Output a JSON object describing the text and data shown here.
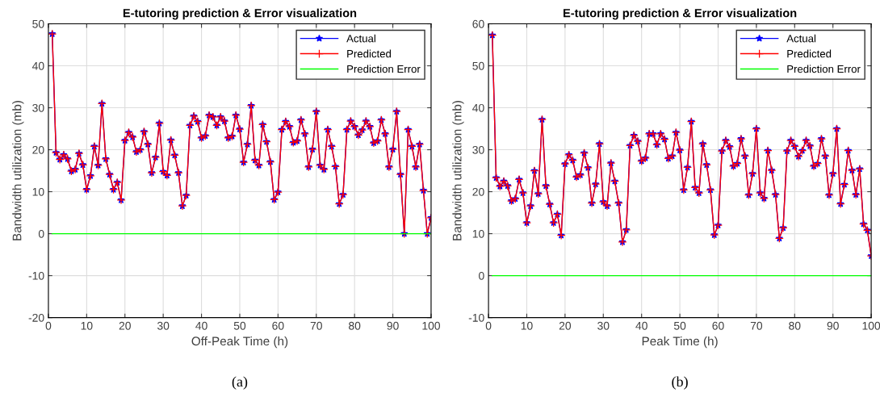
{
  "chart_data": [
    {
      "type": "line",
      "title": "E-tutoring prediction & Error visualization",
      "xlabel": "Off-Peak Time (h)",
      "ylabel": "Bandwidth utilization (mb)",
      "annotations": [
        "(a)"
      ],
      "x": [
        1,
        2,
        3,
        4,
        5,
        6,
        7,
        8,
        9,
        10,
        11,
        12,
        13,
        14,
        15,
        16,
        17,
        18,
        19,
        20,
        21,
        22,
        23,
        24,
        25,
        26,
        27,
        28,
        29,
        30,
        31,
        32,
        33,
        34,
        35,
        36,
        37,
        38,
        39,
        40,
        41,
        42,
        43,
        44,
        45,
        46,
        47,
        48,
        49,
        50,
        51,
        52,
        53,
        54,
        55,
        56,
        57,
        58,
        59,
        60,
        61,
        62,
        63,
        64,
        65,
        66,
        67,
        68,
        69,
        70,
        71,
        72,
        73,
        74,
        75,
        76,
        77,
        78,
        79,
        80,
        81,
        82,
        83,
        84,
        85,
        86,
        87,
        88,
        89,
        90,
        91,
        92,
        93,
        94,
        95,
        96,
        97,
        98,
        99,
        100
      ],
      "xlim": [
        0,
        100
      ],
      "xticks": [
        0,
        10,
        20,
        30,
        40,
        50,
        60,
        70,
        80,
        90,
        100
      ],
      "ylim": [
        -20,
        50
      ],
      "yticks": [
        -20,
        -10,
        0,
        10,
        20,
        30,
        40,
        50
      ],
      "grid": true,
      "legend": "top right",
      "series": [
        {
          "name": "Actual",
          "color": "#0000ff",
          "marker": "star",
          "values": [
            47.6,
            19.3,
            17.7,
            18.8,
            17.8,
            14.9,
            15.3,
            19.1,
            16.4,
            10.5,
            13.8,
            20.8,
            16.3,
            31,
            17.8,
            14.1,
            10.5,
            12.2,
            8,
            22.2,
            24.1,
            23,
            19.5,
            20,
            24.3,
            21.3,
            14.5,
            18.2,
            26.3,
            14.8,
            13.9,
            22.3,
            18.7,
            14.5,
            6.6,
            9.1,
            25.8,
            28,
            26.7,
            22.8,
            23.3,
            28.2,
            27.8,
            25.8,
            27.8,
            26.8,
            22.8,
            23.2,
            28.2,
            24.9,
            17,
            21.3,
            30.5,
            17.5,
            16.3,
            26,
            21.9,
            17.1,
            8.1,
            9.9,
            24.8,
            26.7,
            25.5,
            21.7,
            22.1,
            27.1,
            23.8,
            15.9,
            20.1,
            29.1,
            16.3,
            15.3,
            24.8,
            20.8,
            16,
            7.1,
            9.3,
            24.8,
            26.8,
            25.5,
            23.5,
            24.7,
            26.8,
            25.5,
            21.6,
            22.1,
            27.1,
            23.8,
            15.9,
            20.1,
            29.1,
            14.1,
            0,
            24.8,
            20.8,
            15.9,
            21.3,
            10.3,
            0,
            3.8
          ]
        },
        {
          "name": "Predicted",
          "color": "#ff0000",
          "marker": "cross",
          "values": [
            47.6,
            19.3,
            17.7,
            18.8,
            17.8,
            14.9,
            15.3,
            19.1,
            16.4,
            10.5,
            13.8,
            20.8,
            16.3,
            31,
            17.8,
            14.1,
            10.5,
            12.2,
            8,
            22.2,
            24.1,
            23,
            19.5,
            20,
            24.3,
            21.3,
            14.5,
            18.2,
            26.3,
            14.8,
            13.9,
            22.3,
            18.7,
            14.5,
            6.6,
            9.1,
            25.8,
            28,
            26.7,
            22.8,
            23.3,
            28.2,
            27.8,
            25.8,
            27.8,
            26.8,
            22.8,
            23.2,
            28.2,
            24.9,
            17,
            21.3,
            30.5,
            17.5,
            16.3,
            26,
            21.9,
            17.1,
            8.1,
            9.9,
            24.8,
            26.7,
            25.5,
            21.7,
            22.1,
            27.1,
            23.8,
            15.9,
            20.1,
            29.1,
            16.3,
            15.3,
            24.8,
            20.8,
            16,
            7.1,
            9.3,
            24.8,
            26.8,
            25.5,
            23.5,
            24.7,
            26.8,
            25.5,
            21.6,
            22.1,
            27.1,
            23.8,
            15.9,
            20.1,
            29.1,
            14.1,
            0,
            24.8,
            20.8,
            15.9,
            21.3,
            10.3,
            0,
            3.8
          ]
        },
        {
          "name": "Prediction Error",
          "color": "#00ff00",
          "marker": "none",
          "values": [
            0,
            0,
            0,
            0,
            0,
            0,
            0,
            0,
            0,
            0,
            0,
            0,
            0,
            0,
            0,
            0,
            0,
            0,
            0,
            0,
            0,
            0,
            0,
            0,
            0,
            0,
            0,
            0,
            0,
            0,
            0,
            0,
            0,
            0,
            0,
            0,
            0,
            0,
            0,
            0,
            0,
            0,
            0,
            0,
            0,
            0,
            0,
            0,
            0,
            0,
            0,
            0,
            0,
            0,
            0,
            0,
            0,
            0,
            0,
            0,
            0,
            0,
            0,
            0,
            0,
            0,
            0,
            0,
            0,
            0,
            0,
            0,
            0,
            0,
            0,
            0,
            0,
            0,
            0,
            0,
            0,
            0,
            0,
            0,
            0,
            0,
            0,
            0,
            0,
            0,
            0,
            0,
            0,
            0,
            0,
            0,
            0,
            0,
            0,
            0
          ]
        }
      ]
    },
    {
      "type": "line",
      "title": "E-tutoring prediction & Error visualization",
      "xlabel": "Peak Time (h)",
      "ylabel": "Bandwidth utilization (mb)",
      "annotations": [
        "(b)"
      ],
      "x": [
        1,
        2,
        3,
        4,
        5,
        6,
        7,
        8,
        9,
        10,
        11,
        12,
        13,
        14,
        15,
        16,
        17,
        18,
        19,
        20,
        21,
        22,
        23,
        24,
        25,
        26,
        27,
        28,
        29,
        30,
        31,
        32,
        33,
        34,
        35,
        36,
        37,
        38,
        39,
        40,
        41,
        42,
        43,
        44,
        45,
        46,
        47,
        48,
        49,
        50,
        51,
        52,
        53,
        54,
        55,
        56,
        57,
        58,
        59,
        60,
        61,
        62,
        63,
        64,
        65,
        66,
        67,
        68,
        69,
        70,
        71,
        72,
        73,
        74,
        75,
        76,
        77,
        78,
        79,
        80,
        81,
        82,
        83,
        84,
        85,
        86,
        87,
        88,
        89,
        90,
        91,
        92,
        93,
        94,
        95,
        96,
        97,
        98,
        99,
        100
      ],
      "xlim": [
        0,
        100
      ],
      "xticks": [
        0,
        10,
        20,
        30,
        40,
        50,
        60,
        70,
        80,
        90,
        100
      ],
      "ylim": [
        -10,
        60
      ],
      "yticks": [
        -10,
        0,
        10,
        20,
        30,
        40,
        50,
        60
      ],
      "grid": true,
      "legend": "top right",
      "series": [
        {
          "name": "Actual",
          "color": "#0000ff",
          "marker": "star",
          "values": [
            57.3,
            23.3,
            21.3,
            22.5,
            21.4,
            17.8,
            18.3,
            22.9,
            19.7,
            12.6,
            16.6,
            25,
            19.5,
            37.2,
            21.4,
            17,
            12.6,
            14.6,
            9.6,
            26.6,
            28.8,
            27.5,
            23.5,
            24,
            29.2,
            25.7,
            17.3,
            21.8,
            31.4,
            17.6,
            16.6,
            26.8,
            22.5,
            17.3,
            8,
            10.9,
            31,
            33.4,
            32,
            27.3,
            28,
            33.8,
            33.8,
            31.2,
            33.8,
            32.5,
            27.9,
            28.5,
            34.1,
            29.9,
            20.4,
            25.8,
            36.7,
            21,
            19.7,
            31.4,
            26.4,
            20.4,
            9.7,
            12,
            29.7,
            32.2,
            30.7,
            26.1,
            26.7,
            32.6,
            28.5,
            19.2,
            24.3,
            35,
            19.7,
            18.4,
            29.8,
            25.1,
            19.3,
            8.9,
            11.4,
            29.7,
            32.2,
            30.8,
            28.4,
            29.8,
            32.2,
            30.9,
            26.1,
            26.7,
            32.6,
            28.5,
            19.2,
            24.3,
            35,
            17.1,
            21.7,
            29.8,
            25.1,
            19.3,
            25.4,
            12.3,
            10.8,
            4.7
          ]
        },
        {
          "name": "Predicted",
          "color": "#ff0000",
          "marker": "cross",
          "values": [
            57.3,
            23.3,
            21.3,
            22.5,
            21.4,
            17.8,
            18.3,
            22.9,
            19.7,
            12.6,
            16.6,
            25,
            19.5,
            37.2,
            21.4,
            17,
            12.6,
            14.6,
            9.6,
            26.6,
            28.8,
            27.5,
            23.5,
            24,
            29.2,
            25.7,
            17.3,
            21.8,
            31.4,
            17.6,
            16.6,
            26.8,
            22.5,
            17.3,
            8,
            10.9,
            31,
            33.4,
            32,
            27.3,
            28,
            33.8,
            33.8,
            31.2,
            33.8,
            32.5,
            27.9,
            28.5,
            34.1,
            29.9,
            20.4,
            25.8,
            36.7,
            21,
            19.7,
            31.4,
            26.4,
            20.4,
            9.7,
            12,
            29.7,
            32.2,
            30.7,
            26.1,
            26.7,
            32.6,
            28.5,
            19.2,
            24.3,
            35,
            19.7,
            18.4,
            29.8,
            25.1,
            19.3,
            8.9,
            11.4,
            29.7,
            32.2,
            30.8,
            28.4,
            29.8,
            32.2,
            30.9,
            26.1,
            26.7,
            32.6,
            28.5,
            19.2,
            24.3,
            35,
            17.1,
            21.7,
            29.8,
            25.1,
            19.3,
            25.4,
            12.3,
            10.8,
            4.7
          ]
        },
        {
          "name": "Prediction Error",
          "color": "#00ff00",
          "marker": "none",
          "values": [
            0,
            0,
            0,
            0,
            0,
            0,
            0,
            0,
            0,
            0,
            0,
            0,
            0,
            0,
            0,
            0,
            0,
            0,
            0,
            0,
            0,
            0,
            0,
            0,
            0,
            0,
            0,
            0,
            0,
            0,
            0,
            0,
            0,
            0,
            0,
            0,
            0,
            0,
            0,
            0,
            0,
            0,
            0,
            0,
            0,
            0,
            0,
            0,
            0,
            0,
            0,
            0,
            0,
            0,
            0,
            0,
            0,
            0,
            0,
            0,
            0,
            0,
            0,
            0,
            0,
            0,
            0,
            0,
            0,
            0,
            0,
            0,
            0,
            0,
            0,
            0,
            0,
            0,
            0,
            0,
            0,
            0,
            0,
            0,
            0,
            0,
            0,
            0,
            0,
            0,
            0,
            0,
            0,
            0,
            0,
            0,
            0,
            0,
            0,
            0
          ]
        }
      ]
    }
  ]
}
